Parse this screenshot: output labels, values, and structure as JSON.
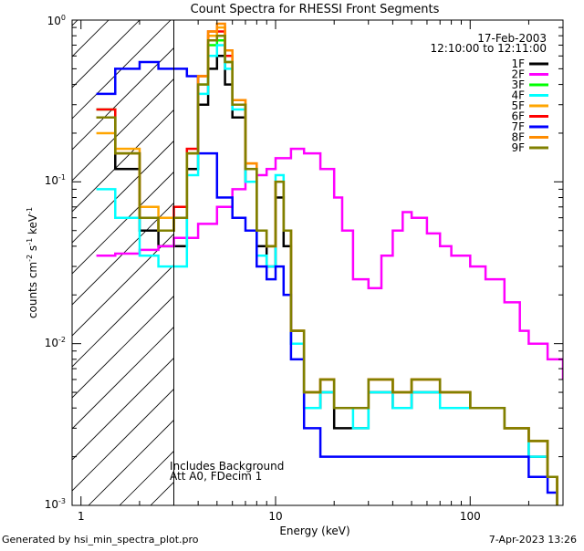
{
  "chart_data": {
    "type": "line",
    "title": "Count Spectra for RHESSI Front Segments",
    "xlabel": "Energy (keV)",
    "ylabel_parts": {
      "base": "counts cm",
      "exp1": "-2",
      "mid1": " s",
      "exp2": "-1",
      "mid2": " keV",
      "exp3": "-1"
    },
    "xscale": "log",
    "yscale": "log",
    "xlim": [
      0.9,
      300
    ],
    "ylim": [
      0.001,
      1
    ],
    "xticks": [
      {
        "value": 1,
        "label": "1"
      },
      {
        "value": 10,
        "label": "10"
      },
      {
        "value": 100,
        "label": "100"
      }
    ],
    "yticks": [
      {
        "value": 0.001,
        "base": "10",
        "exp": "-3"
      },
      {
        "value": 0.01,
        "base": "10",
        "exp": "-2"
      },
      {
        "value": 0.1,
        "base": "10",
        "exp": "-1"
      },
      {
        "value": 1,
        "base": "10",
        "exp": "0"
      }
    ],
    "hatched_region_kev": [
      0.9,
      3
    ],
    "legend_header": [
      "17-Feb-2003",
      "12:10:00 to 12:11:00"
    ],
    "legend_position": "top-right",
    "annotations": [
      "Includes Background",
      "Att A0, FDecim 1"
    ],
    "series": [
      {
        "name": "1F",
        "color": "#000000",
        "x": [
          1.2,
          1.5,
          2.0,
          2.5,
          3.0,
          3.5,
          4.0,
          4.5,
          5.0,
          5.5,
          6.0,
          7.0,
          8.0,
          9.0,
          10.0,
          11.0,
          12.0,
          14,
          17,
          20,
          25,
          30,
          40,
          50,
          70,
          100,
          150,
          200,
          250,
          280
        ],
        "y": [
          0.25,
          0.12,
          0.05,
          0.04,
          0.04,
          0.12,
          0.3,
          0.5,
          0.6,
          0.4,
          0.25,
          0.1,
          0.04,
          0.03,
          0.08,
          0.04,
          0.01,
          0.004,
          0.005,
          0.003,
          0.003,
          0.005,
          0.004,
          0.005,
          0.005,
          0.004,
          0.003,
          0.002,
          0.0015,
          0.001
        ]
      },
      {
        "name": "2F",
        "color": "#ff00ff",
        "x": [
          1.2,
          1.5,
          2.0,
          2.5,
          3.0,
          4.0,
          5.0,
          6.0,
          7.0,
          8.0,
          9.0,
          10.0,
          12.0,
          14.0,
          17.0,
          20.0,
          22.0,
          25.0,
          30.0,
          35.0,
          40.0,
          45.0,
          50.0,
          60.0,
          70.0,
          80.0,
          100.0,
          120.0,
          150.0,
          180.0,
          200.0,
          250.0,
          300.0
        ],
        "y": [
          0.035,
          0.036,
          0.038,
          0.04,
          0.045,
          0.055,
          0.07,
          0.09,
          0.1,
          0.11,
          0.12,
          0.14,
          0.16,
          0.15,
          0.12,
          0.08,
          0.05,
          0.025,
          0.022,
          0.035,
          0.05,
          0.065,
          0.06,
          0.048,
          0.04,
          0.035,
          0.03,
          0.025,
          0.018,
          0.012,
          0.01,
          0.008,
          0.006
        ]
      },
      {
        "name": "3F",
        "color": "#00ff00",
        "x": [
          1.2,
          1.5,
          2.0,
          2.5,
          3.0,
          3.5,
          4.0,
          4.5,
          5.0,
          5.5,
          6.0,
          7.0,
          8.0,
          9.0,
          10.0,
          11.0,
          12.0,
          14,
          17,
          20,
          25,
          30,
          40,
          50,
          70,
          100,
          150,
          200,
          250,
          280
        ],
        "y": [
          0.28,
          0.15,
          0.06,
          0.05,
          0.06,
          0.15,
          0.4,
          0.7,
          0.75,
          0.55,
          0.3,
          0.12,
          0.05,
          0.04,
          0.1,
          0.05,
          0.012,
          0.005,
          0.006,
          0.004,
          0.004,
          0.006,
          0.005,
          0.006,
          0.005,
          0.004,
          0.003,
          0.0025,
          0.0015,
          0.001
        ]
      },
      {
        "name": "4F",
        "color": "#00ffff",
        "x": [
          1.2,
          1.5,
          2.0,
          2.5,
          3.0,
          3.5,
          4.0,
          4.5,
          5.0,
          5.5,
          6.0,
          7.0,
          8.0,
          9.0,
          10.0,
          11.0,
          12.0,
          14,
          17,
          20,
          25,
          30,
          40,
          50,
          70,
          100,
          150,
          200,
          250,
          280
        ],
        "y": [
          0.09,
          0.06,
          0.035,
          0.03,
          0.03,
          0.11,
          0.35,
          0.6,
          0.7,
          0.5,
          0.28,
          0.1,
          0.035,
          0.03,
          0.11,
          0.05,
          0.01,
          0.004,
          0.005,
          0.004,
          0.003,
          0.005,
          0.004,
          0.005,
          0.004,
          0.004,
          0.003,
          0.002,
          0.0015,
          0.001
        ]
      },
      {
        "name": "5F",
        "color": "#ffa500",
        "x": [
          1.2,
          1.5,
          2.0,
          2.5,
          3.0,
          3.5,
          4.0,
          4.5,
          5.0,
          5.5,
          6.0,
          7.0,
          8.0,
          9.0,
          10.0,
          11.0,
          12.0,
          14,
          17,
          20,
          25,
          30,
          40,
          50,
          70,
          100,
          150,
          200,
          250,
          280
        ],
        "y": [
          0.2,
          0.16,
          0.07,
          0.06,
          0.06,
          0.15,
          0.45,
          0.8,
          0.9,
          0.6,
          0.32,
          0.13,
          0.05,
          0.04,
          0.1,
          0.05,
          0.012,
          0.005,
          0.006,
          0.004,
          0.004,
          0.006,
          0.005,
          0.006,
          0.005,
          0.004,
          0.003,
          0.0025,
          0.0015,
          0.001
        ]
      },
      {
        "name": "6F",
        "color": "#ff0000",
        "x": [
          1.2,
          1.5,
          2.0,
          2.5,
          3.0,
          3.5,
          4.0,
          4.5,
          5.0,
          5.5,
          6.0,
          7.0,
          8.0,
          9.0,
          10.0,
          11.0,
          12.0,
          14,
          17,
          20,
          25,
          30,
          40,
          50,
          70,
          100,
          150,
          200,
          250,
          280
        ],
        "y": [
          0.28,
          0.15,
          0.06,
          0.05,
          0.07,
          0.16,
          0.45,
          0.85,
          0.85,
          0.6,
          0.3,
          0.12,
          0.05,
          0.04,
          0.1,
          0.05,
          0.012,
          0.005,
          0.006,
          0.004,
          0.004,
          0.006,
          0.005,
          0.006,
          0.005,
          0.004,
          0.003,
          0.0025,
          0.0015,
          0.001
        ]
      },
      {
        "name": "7F",
        "color": "#0000ff",
        "x": [
          1.2,
          1.5,
          2.0,
          2.5,
          3.0,
          3.5,
          4.0,
          5.0,
          6.0,
          7.0,
          8.0,
          9.0,
          10.0,
          11.0,
          12.0,
          14,
          17,
          20,
          25,
          30,
          40,
          50,
          70,
          100,
          150,
          200,
          250,
          280
        ],
        "y": [
          0.35,
          0.5,
          0.55,
          0.5,
          0.5,
          0.45,
          0.15,
          0.08,
          0.06,
          0.05,
          0.03,
          0.025,
          0.03,
          0.02,
          0.008,
          0.003,
          0.002,
          0.002,
          0.002,
          0.002,
          0.002,
          0.002,
          0.002,
          0.002,
          0.002,
          0.0015,
          0.0012,
          0.001
        ]
      },
      {
        "name": "8F",
        "color": "#ff8c00",
        "x": [
          1.2,
          1.5,
          2.0,
          2.5,
          3.0,
          3.5,
          4.0,
          4.5,
          5.0,
          5.5,
          6.0,
          7.0,
          8.0,
          9.0,
          10.0,
          11.0,
          12.0,
          14,
          17,
          20,
          25,
          30,
          40,
          50,
          70,
          100,
          150,
          200,
          250,
          280
        ],
        "y": [
          0.25,
          0.15,
          0.06,
          0.05,
          0.06,
          0.15,
          0.45,
          0.85,
          0.95,
          0.65,
          0.32,
          0.13,
          0.05,
          0.04,
          0.1,
          0.05,
          0.012,
          0.005,
          0.006,
          0.004,
          0.004,
          0.006,
          0.005,
          0.006,
          0.005,
          0.004,
          0.003,
          0.0025,
          0.0015,
          0.001
        ]
      },
      {
        "name": "9F",
        "color": "#808000",
        "x": [
          1.2,
          1.5,
          2.0,
          2.5,
          3.0,
          3.5,
          4.0,
          4.5,
          5.0,
          5.5,
          6.0,
          7.0,
          8.0,
          9.0,
          10.0,
          11.0,
          12.0,
          14,
          17,
          20,
          25,
          30,
          40,
          50,
          70,
          100,
          150,
          200,
          250,
          280
        ],
        "y": [
          0.25,
          0.15,
          0.06,
          0.05,
          0.06,
          0.15,
          0.4,
          0.75,
          0.8,
          0.55,
          0.3,
          0.12,
          0.05,
          0.04,
          0.1,
          0.05,
          0.012,
          0.005,
          0.006,
          0.004,
          0.004,
          0.006,
          0.005,
          0.006,
          0.005,
          0.004,
          0.003,
          0.0025,
          0.0015,
          0.001
        ]
      }
    ]
  },
  "footer": {
    "left": "Generated by hsi_min_spectra_plot.pro",
    "right": "7-Apr-2023 13:26"
  }
}
